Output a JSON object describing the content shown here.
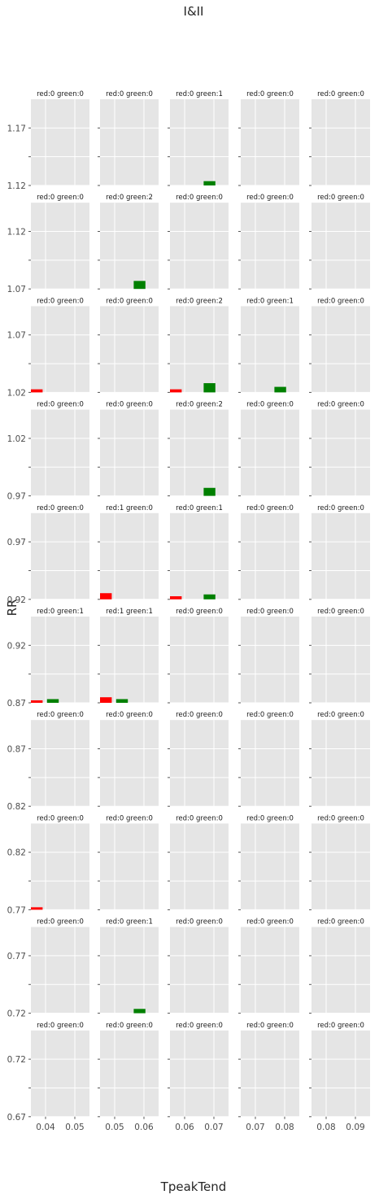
{
  "chart_data": {
    "type": "bar",
    "title": "I&II",
    "xlabel": "TpeakTend",
    "ylabel": "RR",
    "grid": true,
    "series": [
      {
        "name": "red",
        "color": "#ff0000"
      },
      {
        "name": "green",
        "color": "#008000"
      }
    ],
    "columns": [
      {
        "xlim": [
          0.035,
          0.055
        ],
        "tick_values": [
          0.04,
          0.05
        ],
        "tick_labels": [
          "0.04",
          "0.05"
        ]
      },
      {
        "xlim": [
          0.045,
          0.065
        ],
        "tick_values": [
          0.05,
          0.06
        ],
        "tick_labels": [
          "0.05",
          "0.06"
        ]
      },
      {
        "xlim": [
          0.055,
          0.075
        ],
        "tick_values": [
          0.06,
          0.07
        ],
        "tick_labels": [
          "0.06",
          "0.07"
        ]
      },
      {
        "xlim": [
          0.065,
          0.085
        ],
        "tick_values": [
          0.07,
          0.08
        ],
        "tick_labels": [
          "0.07",
          "0.08"
        ]
      },
      {
        "xlim": [
          0.075,
          0.095
        ],
        "tick_values": [
          0.08,
          0.09
        ],
        "tick_labels": [
          "0.08",
          "0.09"
        ]
      }
    ],
    "rows": [
      {
        "ylim": [
          1.12,
          1.19
        ],
        "tick_labels": [
          "1.17",
          "1.12"
        ]
      },
      {
        "ylim": [
          1.07,
          1.14
        ],
        "tick_labels": [
          "1.12",
          "1.07"
        ]
      },
      {
        "ylim": [
          1.02,
          1.09
        ],
        "tick_labels": [
          "1.07",
          "1.02"
        ]
      },
      {
        "ylim": [
          0.97,
          1.04
        ],
        "tick_labels": [
          "1.02",
          "0.97"
        ]
      },
      {
        "ylim": [
          0.92,
          0.99
        ],
        "tick_labels": [
          "0.97",
          "0.92"
        ]
      },
      {
        "ylim": [
          0.87,
          0.94
        ],
        "tick_labels": [
          "0.92",
          "0.87"
        ]
      },
      {
        "ylim": [
          0.82,
          0.89
        ],
        "tick_labels": [
          "0.87",
          "0.82"
        ]
      },
      {
        "ylim": [
          0.77,
          0.84
        ],
        "tick_labels": [
          "0.82",
          "0.77"
        ]
      },
      {
        "ylim": [
          0.72,
          0.79
        ],
        "tick_labels": [
          "0.77",
          "0.72"
        ]
      },
      {
        "ylim": [
          0.67,
          0.74
        ],
        "tick_labels": [
          "0.72",
          "0.67"
        ]
      }
    ],
    "panels": [
      [
        {
          "title": "red:0 green:0",
          "bars": []
        },
        {
          "title": "red:0 green:0",
          "bars": []
        },
        {
          "title": "red:0 green:1",
          "bars": [
            {
              "series": "green",
              "x": [
                0.0665,
                0.0705
              ],
              "y": [
                1.12,
                1.1235
              ]
            }
          ]
        },
        {
          "title": "red:0 green:0",
          "bars": []
        },
        {
          "title": "red:0 green:0",
          "bars": []
        }
      ],
      [
        {
          "title": "red:0 green:0",
          "bars": []
        },
        {
          "title": "red:0 green:2",
          "bars": [
            {
              "series": "green",
              "x": [
                0.0565,
                0.0605
              ],
              "y": [
                1.07,
                1.0765
              ]
            }
          ]
        },
        {
          "title": "red:0 green:0",
          "bars": []
        },
        {
          "title": "red:0 green:0",
          "bars": []
        },
        {
          "title": "red:0 green:0",
          "bars": []
        }
      ],
      [
        {
          "title": "red:0 green:0",
          "bars": [
            {
              "series": "red",
              "x": [
                0.035,
                0.039
              ],
              "y": [
                1.02,
                1.0225
              ]
            }
          ]
        },
        {
          "title": "red:0 green:0",
          "bars": []
        },
        {
          "title": "red:0 green:2",
          "bars": [
            {
              "series": "red",
              "x": [
                0.055,
                0.059
              ],
              "y": [
                1.02,
                1.0225
              ]
            },
            {
              "series": "green",
              "x": [
                0.0665,
                0.0705
              ],
              "y": [
                1.02,
                1.0275
              ]
            }
          ]
        },
        {
          "title": "red:0 green:1",
          "bars": [
            {
              "series": "green",
              "x": [
                0.0765,
                0.0805
              ],
              "y": [
                1.02,
                1.0245
              ]
            }
          ]
        },
        {
          "title": "red:0 green:0",
          "bars": []
        }
      ],
      [
        {
          "title": "red:0 green:0",
          "bars": []
        },
        {
          "title": "red:0 green:0",
          "bars": []
        },
        {
          "title": "red:0 green:2",
          "bars": [
            {
              "series": "green",
              "x": [
                0.0665,
                0.0705
              ],
              "y": [
                0.97,
                0.9765
              ]
            }
          ]
        },
        {
          "title": "red:0 green:0",
          "bars": []
        },
        {
          "title": "red:0 green:0",
          "bars": []
        }
      ],
      [
        {
          "title": "red:0 green:0",
          "bars": []
        },
        {
          "title": "red:1 green:0",
          "bars": [
            {
              "series": "red",
              "x": [
                0.045,
                0.049
              ],
              "y": [
                0.92,
                0.925
              ]
            }
          ]
        },
        {
          "title": "red:0 green:1",
          "bars": [
            {
              "series": "red",
              "x": [
                0.055,
                0.059
              ],
              "y": [
                0.92,
                0.9225
              ]
            },
            {
              "series": "green",
              "x": [
                0.0665,
                0.0705
              ],
              "y": [
                0.92,
                0.924
              ]
            }
          ]
        },
        {
          "title": "red:0 green:0",
          "bars": []
        },
        {
          "title": "red:0 green:0",
          "bars": []
        }
      ],
      [
        {
          "title": "red:0 green:1",
          "bars": [
            {
              "series": "red",
              "x": [
                0.035,
                0.039
              ],
              "y": [
                0.87,
                0.872
              ]
            },
            {
              "series": "green",
              "x": [
                0.0405,
                0.0445
              ],
              "y": [
                0.87,
                0.873
              ]
            }
          ]
        },
        {
          "title": "red:1 green:1",
          "bars": [
            {
              "series": "red",
              "x": [
                0.045,
                0.049
              ],
              "y": [
                0.87,
                0.8745
              ]
            },
            {
              "series": "green",
              "x": [
                0.0505,
                0.0545
              ],
              "y": [
                0.87,
                0.873
              ]
            }
          ]
        },
        {
          "title": "red:0 green:0",
          "bars": []
        },
        {
          "title": "red:0 green:0",
          "bars": []
        },
        {
          "title": "red:0 green:0",
          "bars": []
        }
      ],
      [
        {
          "title": "red:0 green:0",
          "bars": []
        },
        {
          "title": "red:0 green:0",
          "bars": []
        },
        {
          "title": "red:0 green:0",
          "bars": []
        },
        {
          "title": "red:0 green:0",
          "bars": []
        },
        {
          "title": "red:0 green:0",
          "bars": []
        }
      ],
      [
        {
          "title": "red:0 green:0",
          "bars": [
            {
              "series": "red",
              "x": [
                0.035,
                0.039
              ],
              "y": [
                0.77,
                0.772
              ]
            }
          ]
        },
        {
          "title": "red:0 green:0",
          "bars": []
        },
        {
          "title": "red:0 green:0",
          "bars": []
        },
        {
          "title": "red:0 green:0",
          "bars": []
        },
        {
          "title": "red:0 green:0",
          "bars": []
        }
      ],
      [
        {
          "title": "red:0 green:0",
          "bars": []
        },
        {
          "title": "red:0 green:1",
          "bars": [
            {
              "series": "green",
              "x": [
                0.0565,
                0.0605
              ],
              "y": [
                0.72,
                0.7235
              ]
            }
          ]
        },
        {
          "title": "red:0 green:0",
          "bars": []
        },
        {
          "title": "red:0 green:0",
          "bars": []
        },
        {
          "title": "red:0 green:0",
          "bars": []
        }
      ],
      [
        {
          "title": "red:0 green:0",
          "bars": []
        },
        {
          "title": "red:0 green:0",
          "bars": []
        },
        {
          "title": "red:0 green:0",
          "bars": []
        },
        {
          "title": "red:0 green:0",
          "bars": []
        },
        {
          "title": "red:0 green:0",
          "bars": []
        }
      ]
    ]
  }
}
